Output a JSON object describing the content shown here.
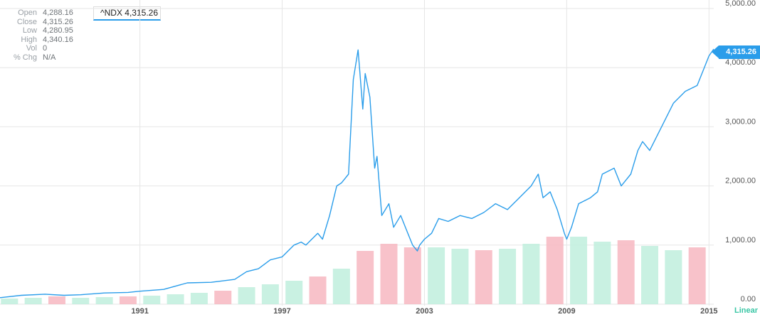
{
  "ohlc": [
    {
      "key": "Open",
      "value": "4,288.16"
    },
    {
      "key": "Close",
      "value": "4,315.26"
    },
    {
      "key": "Low",
      "value": "4,280.95"
    },
    {
      "key": "High",
      "value": "4,340.16"
    },
    {
      "key": "Vol",
      "value": "0"
    },
    {
      "key": "% Chg",
      "value": "N/A"
    }
  ],
  "legend": {
    "text": "^NDX 4,315.26"
  },
  "price_tag": "4,315.26",
  "scale_toggle": "Linear",
  "colors": {
    "line": "#2a9dea",
    "grid": "#e6e6e6",
    "vol_up": "#bfeedd",
    "vol_down": "#f7b7c1"
  },
  "chart_data": {
    "type": "line",
    "series": [
      {
        "x": [
          1985.1,
          1986.0,
          1987.0,
          1987.8,
          1988.5,
          1989.5,
          1990.5,
          1991.0,
          1992.0,
          1993.0,
          1994.0,
          1995.0,
          1995.5,
          1996.0,
          1996.5,
          1997.0,
          1997.5,
          1997.8,
          1998.0,
          1998.5,
          1998.7,
          1999.0,
          1999.3,
          1999.5,
          1999.8,
          2000.0,
          2000.2,
          2000.4,
          2000.5,
          2000.7,
          2000.9,
          2001.0,
          2001.2,
          2001.5,
          2001.7,
          2002.0,
          2002.3,
          2002.5,
          2002.7,
          2002.8,
          2003.0,
          2003.3,
          2003.6,
          2004.0,
          2004.5,
          2005.0,
          2005.5,
          2006.0,
          2006.5,
          2007.0,
          2007.5,
          2007.8,
          2008.0,
          2008.3,
          2008.6,
          2008.9,
          2009.0,
          2009.2,
          2009.5,
          2010.0,
          2010.3,
          2010.5,
          2011.0,
          2011.3,
          2011.7,
          2012.0,
          2012.2,
          2012.5,
          2013.0,
          2013.5,
          2014.0,
          2014.5,
          2014.8,
          2015.0,
          2015.2
        ],
        "y": [
          110,
          150,
          170,
          150,
          160,
          190,
          200,
          220,
          250,
          360,
          370,
          420,
          550,
          600,
          750,
          800,
          1000,
          1050,
          1000,
          1200,
          1100,
          1500,
          2000,
          2050,
          2200,
          3800,
          4300,
          3300,
          3900,
          3500,
          2300,
          2500,
          1500,
          1700,
          1300,
          1500,
          1200,
          1000,
          900,
          1000,
          1100,
          1200,
          1450,
          1400,
          1500,
          1450,
          1550,
          1700,
          1600,
          1800,
          2000,
          2200,
          1800,
          1900,
          1600,
          1200,
          1100,
          1300,
          1700,
          1800,
          1900,
          2200,
          2300,
          2000,
          2200,
          2600,
          2750,
          2600,
          3000,
          3400,
          3600,
          3700,
          4000,
          4200,
          4315
        ]
      }
    ],
    "volume": [
      {
        "x": 1985.5,
        "value": 80,
        "dir": "up"
      },
      {
        "x": 1986.5,
        "value": 90,
        "dir": "up"
      },
      {
        "x": 1987.5,
        "value": 110,
        "dir": "down"
      },
      {
        "x": 1988.5,
        "value": 90,
        "dir": "up"
      },
      {
        "x": 1989.5,
        "value": 100,
        "dir": "up"
      },
      {
        "x": 1990.5,
        "value": 110,
        "dir": "down"
      },
      {
        "x": 1991.5,
        "value": 120,
        "dir": "up"
      },
      {
        "x": 1992.5,
        "value": 140,
        "dir": "up"
      },
      {
        "x": 1993.5,
        "value": 160,
        "dir": "up"
      },
      {
        "x": 1994.5,
        "value": 190,
        "dir": "down"
      },
      {
        "x": 1995.5,
        "value": 240,
        "dir": "up"
      },
      {
        "x": 1996.5,
        "value": 280,
        "dir": "up"
      },
      {
        "x": 1997.5,
        "value": 330,
        "dir": "up"
      },
      {
        "x": 1998.5,
        "value": 390,
        "dir": "down"
      },
      {
        "x": 1999.5,
        "value": 500,
        "dir": "up"
      },
      {
        "x": 2000.5,
        "value": 750,
        "dir": "down"
      },
      {
        "x": 2001.5,
        "value": 850,
        "dir": "down"
      },
      {
        "x": 2002.5,
        "value": 800,
        "dir": "down"
      },
      {
        "x": 2003.5,
        "value": 800,
        "dir": "up"
      },
      {
        "x": 2004.5,
        "value": 780,
        "dir": "up"
      },
      {
        "x": 2005.5,
        "value": 760,
        "dir": "down"
      },
      {
        "x": 2006.5,
        "value": 780,
        "dir": "up"
      },
      {
        "x": 2007.5,
        "value": 850,
        "dir": "up"
      },
      {
        "x": 2008.5,
        "value": 950,
        "dir": "down"
      },
      {
        "x": 2009.5,
        "value": 950,
        "dir": "up"
      },
      {
        "x": 2010.5,
        "value": 880,
        "dir": "up"
      },
      {
        "x": 2011.5,
        "value": 900,
        "dir": "down"
      },
      {
        "x": 2012.5,
        "value": 820,
        "dir": "up"
      },
      {
        "x": 2013.5,
        "value": 760,
        "dir": "up"
      },
      {
        "x": 2014.5,
        "value": 800,
        "dir": "down"
      }
    ],
    "x_ticks": [
      "1991",
      "1997",
      "2003",
      "2009",
      "2015"
    ],
    "x_tick_values": [
      1991,
      1997,
      2003,
      2009,
      2015
    ],
    "y_ticks": [
      "0.00",
      "1,000.00",
      "2,000.00",
      "3,000.00",
      "4,000.00",
      "5,000.00"
    ],
    "y_tick_values": [
      0,
      1000,
      2000,
      3000,
      4000,
      5000
    ],
    "xlim": [
      1985.1,
      2015.2
    ],
    "ylim": [
      0,
      5000
    ],
    "grid": true
  }
}
